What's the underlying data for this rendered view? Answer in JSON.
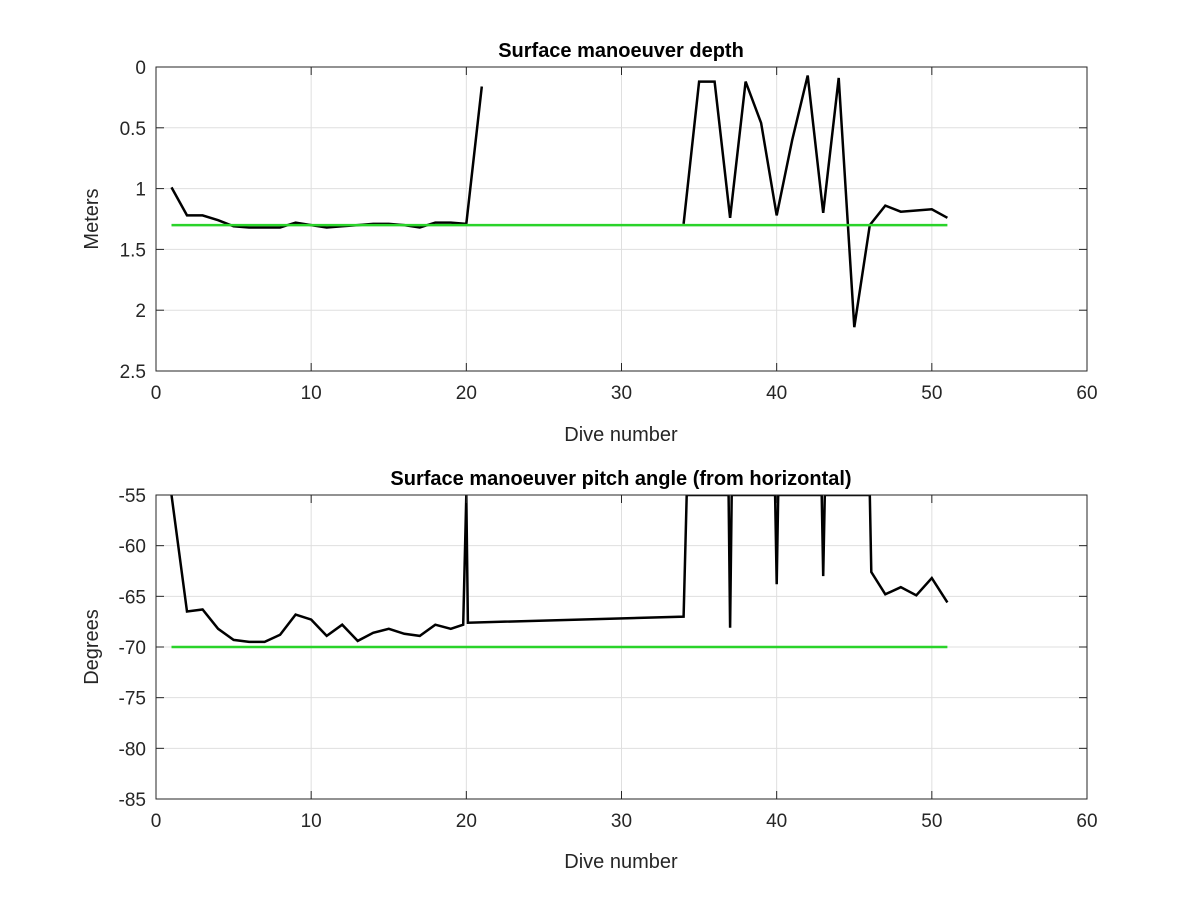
{
  "chart_data": [
    {
      "type": "line",
      "title": "Surface manoeuver depth",
      "xlabel": "Dive number",
      "ylabel": "Meters",
      "xlim": [
        0,
        60
      ],
      "ylim": [
        0,
        2.5
      ],
      "y_reversed": true,
      "grid": true,
      "xticks": [
        0,
        10,
        20,
        30,
        40,
        50,
        60
      ],
      "yticks": [
        0,
        0.5,
        1,
        1.5,
        2,
        2.5
      ],
      "xtick_labels": [
        "0",
        "10",
        "20",
        "30",
        "40",
        "50",
        "60"
      ],
      "ytick_labels": [
        "0",
        "0.5",
        "1",
        "1.5",
        "2",
        "2.5"
      ],
      "series": [
        {
          "color": "#000000",
          "x": [
            1,
            2,
            3,
            4,
            5,
            6,
            7,
            8,
            9,
            10,
            11,
            12,
            13,
            14,
            15,
            16,
            17,
            18,
            19,
            20,
            21,
            21,
            34,
            35,
            36,
            37,
            38,
            39,
            40,
            41,
            42,
            43,
            44,
            45,
            46,
            47,
            48,
            49,
            50,
            51
          ],
          "y": [
            0.99,
            1.22,
            1.22,
            1.26,
            1.31,
            1.32,
            1.32,
            1.32,
            1.28,
            1.3,
            1.32,
            1.31,
            1.3,
            1.29,
            1.29,
            1.3,
            1.32,
            1.28,
            1.28,
            1.29,
            0.16,
            null,
            1.29,
            0.12,
            0.12,
            1.24,
            0.12,
            0.46,
            1.22,
            0.6,
            0.07,
            1.2,
            0.09,
            2.14,
            1.3,
            1.14,
            1.19,
            1.18,
            1.17,
            1.24
          ]
        },
        {
          "color": "#2ad32a",
          "x": [
            1,
            51
          ],
          "y": [
            1.3,
            1.3
          ]
        }
      ]
    },
    {
      "type": "line",
      "title": "Surface manoeuver pitch angle (from horizontal)",
      "xlabel": "Dive number",
      "ylabel": "Degrees",
      "xlim": [
        0,
        60
      ],
      "ylim": [
        -85,
        -55
      ],
      "grid": true,
      "xticks": [
        0,
        10,
        20,
        30,
        40,
        50,
        60
      ],
      "yticks": [
        -85,
        -80,
        -75,
        -70,
        -65,
        -60,
        -55
      ],
      "xtick_labels": [
        "0",
        "10",
        "20",
        "30",
        "40",
        "50",
        "60"
      ],
      "ytick_labels": [
        "-85",
        "-80",
        "-75",
        "-70",
        "-65",
        "-60",
        "-55"
      ],
      "series": [
        {
          "color": "#000000",
          "x": [
            1,
            2,
            3,
            4,
            5,
            6,
            7,
            8,
            9,
            10,
            11,
            12,
            13,
            14,
            15,
            16,
            17,
            18,
            19,
            19.8,
            20,
            20.1,
            34,
            34.2,
            36.9,
            37,
            37.1,
            39.9,
            40,
            40.1,
            42.9,
            43,
            43.1,
            46,
            46.1,
            47,
            48,
            49,
            50,
            51
          ],
          "y": [
            -55,
            -66.5,
            -66.3,
            -68.2,
            -69.3,
            -69.5,
            -69.5,
            -68.8,
            -66.8,
            -67.3,
            -68.9,
            -67.8,
            -69.4,
            -68.6,
            -68.2,
            -68.7,
            -68.9,
            -67.8,
            -68.2,
            -67.8,
            -55,
            -67.6,
            -67,
            -55,
            -55,
            -68.1,
            -55,
            -55,
            -63.8,
            -55,
            -55,
            -63,
            -55,
            -55,
            -62.6,
            -64.8,
            -64.1,
            -64.9,
            -63.2,
            -65.6
          ]
        },
        {
          "color": "#2ad32a",
          "x": [
            1,
            51
          ],
          "y": [
            -70,
            -70
          ]
        }
      ]
    }
  ]
}
